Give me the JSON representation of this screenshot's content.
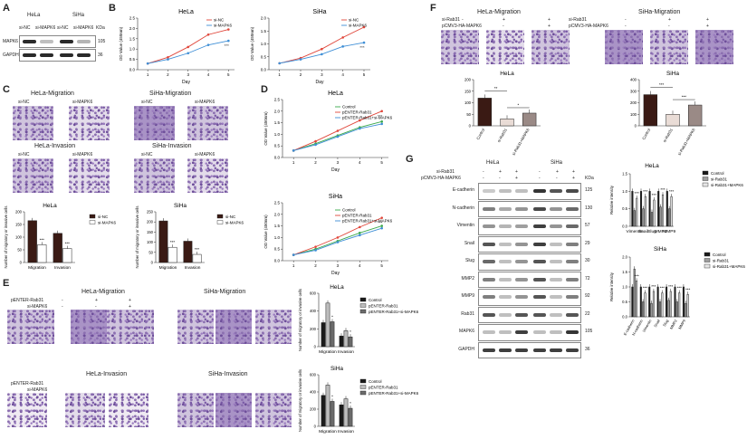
{
  "panels": {
    "A": {
      "letter": "A",
      "groups": [
        "HeLa",
        "SiHa"
      ],
      "lanes": [
        "si-NC",
        "si-MAPK6",
        "si-NC",
        "si-MAPK6"
      ],
      "kda_header": "KDa",
      "rows": [
        {
          "name": "MAPK6",
          "kda": "105"
        },
        {
          "name": "GAPDH",
          "kda": "36"
        }
      ]
    },
    "B": {
      "letter": "B",
      "ylabel": "OD Value (450nm)",
      "xlabel": "Day",
      "legend": [
        "si-NC",
        "si-MAPK6"
      ],
      "sig": "***"
    },
    "C": {
      "letter": "C",
      "images": [
        {
          "title": "HeLa-Migration",
          "labels": [
            "si-NC",
            "si-MAPK6"
          ]
        },
        {
          "title": "SiHa-Migration",
          "labels": [
            "si-NC",
            "si-MAPK6"
          ]
        },
        {
          "title": "HeLa-Invasion",
          "labels": [
            "si-NC",
            "si-MAPK6"
          ]
        },
        {
          "title": "SiHa-Invasion",
          "labels": [
            "si-NC",
            "si-MAPK6"
          ]
        }
      ],
      "ylabel": "Number of migratory or invasive cells",
      "legend": [
        "si-NC",
        "si-MAPK6"
      ],
      "sig": "***"
    },
    "D": {
      "letter": "D",
      "ylabel": "OD Value (450nm)",
      "xlabel": "Day",
      "legend": [
        "Control",
        "pENTER-Rab31",
        "pENTER-Rab31+si-MAPK6"
      ],
      "sig": "***"
    },
    "E": {
      "letter": "E",
      "images": [
        {
          "title": "HeLa-Migration"
        },
        {
          "title": "SiHa-Migration"
        },
        {
          "title": "HeLa-Invasion"
        },
        {
          "title": "SiHa-Invasion"
        }
      ],
      "row_labels": [
        "pENTER-Rab31",
        "si-MAPK6"
      ],
      "signs": [
        "-",
        "+",
        "+",
        "-",
        "-",
        "+"
      ],
      "ylabel": "Number of migratory or invasive cells",
      "legend": [
        "Control",
        "pENTER-Rab31",
        "pENTER-Rab31+si-MAPK6"
      ],
      "sig": "*"
    },
    "F": {
      "letter": "F",
      "titles": [
        "HeLa-Migration",
        "SiHa-Migration"
      ],
      "row_labels": [
        "si-Rab31",
        "pCMV3-HA-MAPK6"
      ],
      "signs": [
        "-",
        "+",
        "+",
        "-",
        "-",
        "+"
      ],
      "sig": [
        "**",
        "*",
        "***",
        "***"
      ]
    },
    "G": {
      "letter": "G",
      "groups": [
        "HeLa",
        "SiHa"
      ],
      "row_labels": [
        "si-Rab31",
        "pCMV3-HA-MAPK6"
      ],
      "signs": [
        "-",
        "+",
        "+",
        "-",
        "-",
        "+",
        "-",
        "+",
        "+",
        "-",
        "-",
        "+"
      ],
      "kda_header": "KDa",
      "blots": [
        {
          "name": "E-cadherin",
          "kda": "125"
        },
        {
          "name": "N-cadherin",
          "kda": "130"
        },
        {
          "name": "Vimentin",
          "kda": "57"
        },
        {
          "name": "Snail",
          "kda": "29"
        },
        {
          "name": "Slug",
          "kda": "30"
        },
        {
          "name": "MMP2",
          "kda": "72"
        },
        {
          "name": "MMP9",
          "kda": "92"
        },
        {
          "name": "Rab31",
          "kda": "22"
        },
        {
          "name": "MAPK6",
          "kda": "105"
        },
        {
          "name": "GAPDH",
          "kda": "36"
        }
      ],
      "ylabel": "Relative intensity",
      "legend": [
        "Control",
        "si-Rab31",
        "si-Rab31+MAPK6"
      ],
      "sig": "***"
    }
  },
  "colors": {
    "red": "#e0463a",
    "blue": "#3f8fd6",
    "green": "#3aa84a",
    "black": "#1a1a1a",
    "grey": "#888888",
    "dark_bar": "#3a1a14",
    "white_bar": "#ffffff"
  },
  "chart_data": [
    {
      "id": "B-HeLa",
      "type": "line",
      "title": "HeLa",
      "xlabel": "Day",
      "ylabel": "OD Value (450nm)",
      "x": [
        1,
        2,
        3,
        4,
        5
      ],
      "ylim": [
        0,
        2.5
      ],
      "yticks": [
        "0.0",
        "0.5",
        "1.0",
        "1.5",
        "2.0",
        "2.5"
      ],
      "xticks": [
        "1",
        "2",
        "3",
        "4",
        "5"
      ],
      "series": [
        {
          "name": "si-NC",
          "values": [
            0.3,
            0.6,
            1.1,
            1.7,
            1.95
          ]
        },
        {
          "name": "si-MAPK6",
          "values": [
            0.3,
            0.5,
            0.8,
            1.2,
            1.4
          ]
        }
      ]
    },
    {
      "id": "B-SiHa",
      "type": "line",
      "title": "SiHa",
      "xlabel": "Day",
      "ylabel": "OD Value (450nm)",
      "x": [
        1,
        2,
        3,
        4,
        5
      ],
      "ylim": [
        0,
        2.0
      ],
      "yticks": [
        "0.0",
        "0.5",
        "1.0",
        "1.5",
        "2.0"
      ],
      "xticks": [
        "1",
        "2",
        "3",
        "4",
        "5"
      ],
      "series": [
        {
          "name": "si-NC",
          "values": [
            0.25,
            0.45,
            0.8,
            1.25,
            1.65
          ]
        },
        {
          "name": "si-MAPK6",
          "values": [
            0.25,
            0.4,
            0.6,
            0.9,
            1.05
          ]
        }
      ]
    },
    {
      "id": "C-HeLa",
      "type": "bar",
      "title": "HeLa",
      "categories": [
        "Migration",
        "Invasion"
      ],
      "ylim": [
        0,
        200
      ],
      "yticks": [
        "0",
        "50",
        "100",
        "150",
        "200"
      ],
      "series": [
        {
          "name": "si-NC",
          "values": [
            165,
            115
          ]
        },
        {
          "name": "si-MAPK6",
          "values": [
            70,
            55
          ]
        }
      ]
    },
    {
      "id": "C-SiHa",
      "type": "bar",
      "title": "SiHa",
      "categories": [
        "Migration",
        "Invasion"
      ],
      "ylim": [
        0,
        250
      ],
      "yticks": [
        "0",
        "50",
        "100",
        "150",
        "200",
        "250"
      ],
      "series": [
        {
          "name": "si-NC",
          "values": [
            205,
            105
          ]
        },
        {
          "name": "si-MAPK6",
          "values": [
            75,
            40
          ]
        }
      ]
    },
    {
      "id": "D-HeLa",
      "type": "line",
      "title": "HeLa",
      "xlabel": "Day",
      "ylabel": "OD Value (450nm)",
      "x": [
        1,
        2,
        3,
        4,
        5
      ],
      "ylim": [
        0,
        2.5
      ],
      "yticks": [
        "0.0",
        "0.5",
        "1.0",
        "1.5",
        "2.0",
        "2.5"
      ],
      "xticks": [
        "1",
        "2",
        "3",
        "4",
        "5"
      ],
      "series": [
        {
          "name": "Control",
          "values": [
            0.3,
            0.6,
            0.95,
            1.3,
            1.55
          ]
        },
        {
          "name": "pENTER-Rab31",
          "values": [
            0.3,
            0.7,
            1.15,
            1.6,
            2.0
          ]
        },
        {
          "name": "pENTER-Rab31+si-MAPK6",
          "values": [
            0.3,
            0.55,
            0.9,
            1.25,
            1.45
          ]
        }
      ]
    },
    {
      "id": "D-SiHa",
      "type": "line",
      "title": "SiHa",
      "xlabel": "Day",
      "ylabel": "OD Value (450nm)",
      "x": [
        1,
        2,
        3,
        4,
        5
      ],
      "ylim": [
        0,
        2.5
      ],
      "yticks": [
        "0.0",
        "0.5",
        "1.0",
        "1.5",
        "2.0",
        "2.5"
      ],
      "xticks": [
        "1",
        "2",
        "3",
        "4",
        "5"
      ],
      "series": [
        {
          "name": "Control",
          "values": [
            0.25,
            0.5,
            0.85,
            1.2,
            1.5
          ]
        },
        {
          "name": "pENTER-Rab31",
          "values": [
            0.25,
            0.6,
            1.0,
            1.45,
            1.85
          ]
        },
        {
          "name": "pENTER-Rab31+si-MAPK6",
          "values": [
            0.25,
            0.45,
            0.8,
            1.1,
            1.4
          ]
        }
      ]
    },
    {
      "id": "E-HeLa",
      "type": "bar",
      "title": "HeLa",
      "categories": [
        "Migration",
        "Invasion"
      ],
      "ylim": [
        0,
        600
      ],
      "yticks": [
        "0",
        "200",
        "400",
        "600"
      ],
      "series": [
        {
          "name": "Control",
          "values": [
            270,
            120
          ]
        },
        {
          "name": "pENTER-Rab31",
          "values": [
            490,
            180
          ]
        },
        {
          "name": "pENTER-Rab31+si-MAPK6",
          "values": [
            280,
            110
          ]
        }
      ]
    },
    {
      "id": "E-SiHa",
      "type": "bar",
      "title": "SiHa",
      "categories": [
        "Migration",
        "Invasion"
      ],
      "ylim": [
        0,
        600
      ],
      "yticks": [
        "0",
        "200",
        "400",
        "600"
      ],
      "series": [
        {
          "name": "Control",
          "values": [
            360,
            250
          ]
        },
        {
          "name": "pENTER-Rab31",
          "values": [
            480,
            320
          ]
        },
        {
          "name": "pENTER-Rab31+si-MAPK6",
          "values": [
            290,
            210
          ]
        }
      ]
    },
    {
      "id": "F-HeLa",
      "type": "bar",
      "title": "HeLa",
      "categories": [
        "Control",
        "si-Rab31",
        "si-Rab31+MAPK6"
      ],
      "ylim": [
        0,
        200
      ],
      "yticks": [
        "0",
        "50",
        "100",
        "150",
        "200"
      ],
      "series": [
        {
          "name": "HeLa",
          "values": [
            120,
            30,
            55
          ]
        }
      ]
    },
    {
      "id": "F-SiHa",
      "type": "bar",
      "title": "SiHa",
      "categories": [
        "Control",
        "si-Rab31",
        "si-Rab31+MAPK6"
      ],
      "ylim": [
        0,
        400
      ],
      "yticks": [
        "0",
        "100",
        "200",
        "300",
        "400"
      ],
      "series": [
        {
          "name": "SiHa",
          "values": [
            270,
            100,
            180
          ]
        }
      ]
    },
    {
      "id": "G-HeLa",
      "type": "bar",
      "title": "HeLa",
      "categories": [
        "Vimentin",
        "Snail",
        "Slug",
        "MMP2",
        "MMP9"
      ],
      "ylim": [
        0,
        1.5
      ],
      "yticks": [
        "0.0",
        "0.5",
        "1.0",
        "1.5"
      ],
      "series": [
        {
          "name": "Control",
          "values": [
            1.0,
            1.0,
            1.0,
            1.0,
            1.0
          ]
        },
        {
          "name": "si-Rab31",
          "values": [
            0.45,
            0.5,
            0.4,
            0.55,
            0.5
          ]
        },
        {
          "name": "si-Rab31+MAPK6",
          "values": [
            0.8,
            0.85,
            0.75,
            0.9,
            0.85
          ]
        }
      ]
    },
    {
      "id": "G-SiHa",
      "type": "bar",
      "title": "SiHa",
      "categories": [
        "E-cadherin",
        "N-cadherin",
        "Vimentin",
        "Snail",
        "Slug",
        "MMP2",
        "MMP9"
      ],
      "ylim": [
        0,
        2.0
      ],
      "yticks": [
        "0.0",
        "0.5",
        "1.0",
        "1.5",
        "2.0"
      ],
      "series": [
        {
          "name": "Control",
          "values": [
            1.0,
            1.0,
            1.0,
            1.0,
            1.0,
            1.0,
            1.0
          ]
        },
        {
          "name": "si-Rab31",
          "values": [
            1.6,
            0.5,
            0.45,
            0.5,
            0.55,
            0.5,
            0.45
          ]
        },
        {
          "name": "si-Rab31+MAPK6",
          "values": [
            1.2,
            0.8,
            0.85,
            0.8,
            0.85,
            0.8,
            0.75
          ]
        }
      ]
    }
  ]
}
